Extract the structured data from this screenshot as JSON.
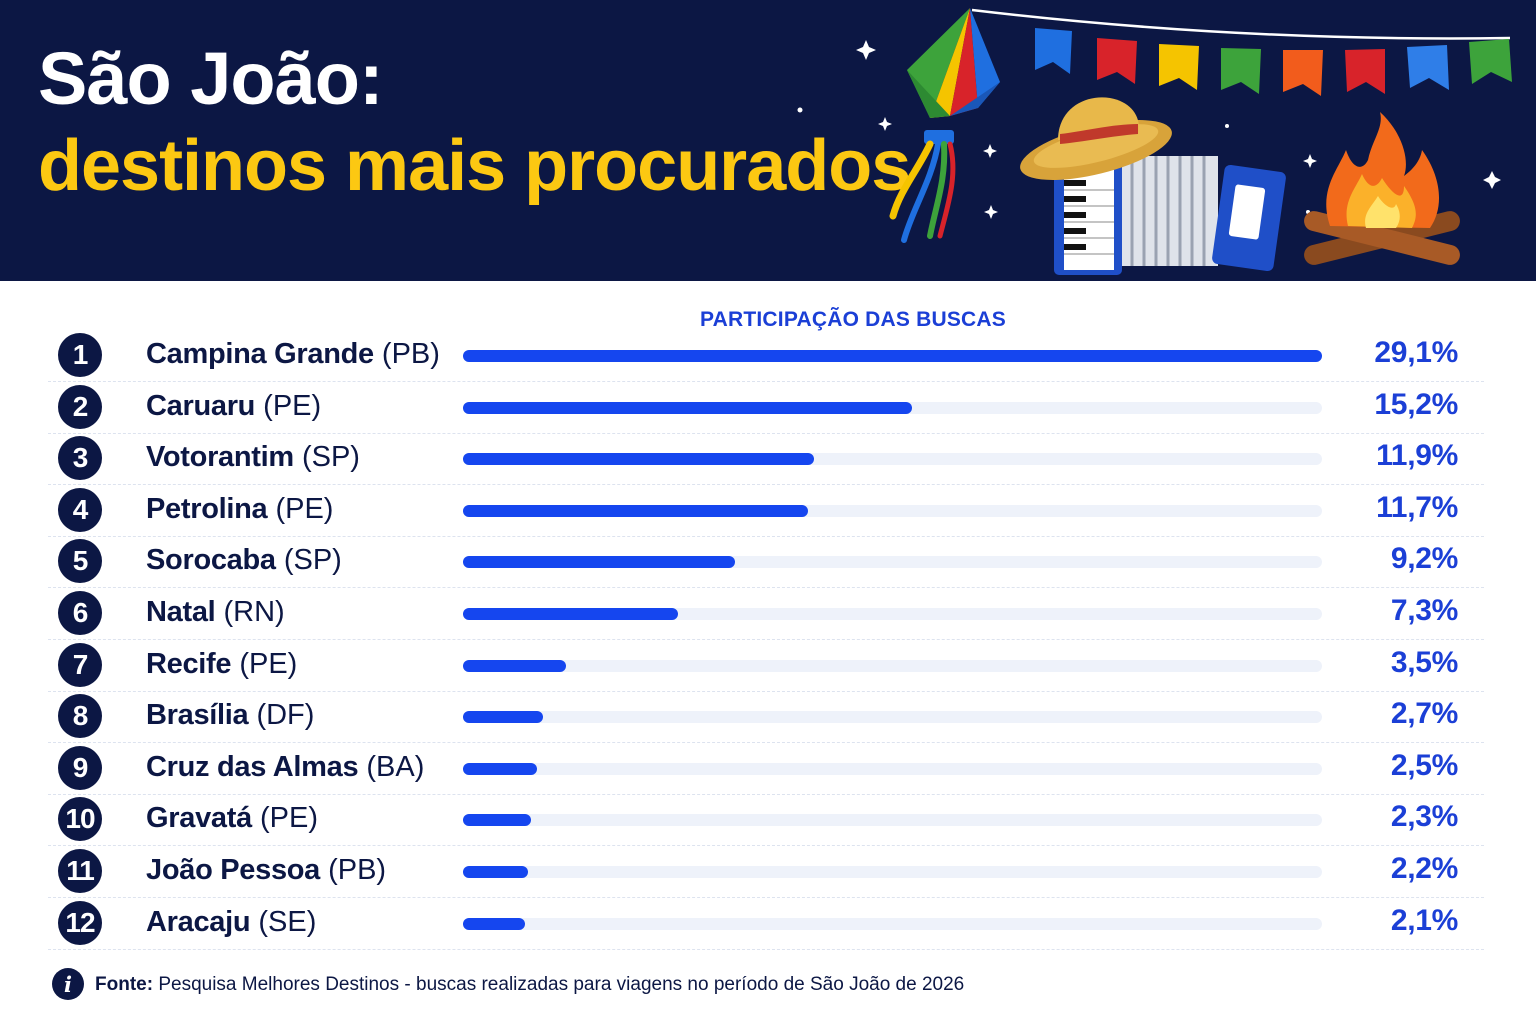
{
  "header": {
    "title_line1": "São João:",
    "title_line2": "destinos mais procurados"
  },
  "colors": {
    "navy": "#0c1744",
    "yellow": "#fcc812",
    "bar": "#1546ef",
    "track": "#eef2fa",
    "accent_text": "#1b3fd6"
  },
  "icons": [
    "balloon-icon",
    "bunting-flags-icon",
    "straw-hat-icon",
    "accordion-icon",
    "bonfire-icon",
    "star-icon",
    "info-icon"
  ],
  "chart_data": {
    "type": "bar",
    "orientation": "horizontal",
    "title": "PARTICIPAÇÃO DAS BUSCAS",
    "unit": "%",
    "xlim": [
      0,
      29.1
    ],
    "categories": [
      "Campina Grande",
      "Caruaru",
      "Votorantim",
      "Petrolina",
      "Sorocaba",
      "Natal",
      "Recife",
      "Brasília",
      "Cruz das Almas",
      "Gravatá",
      "João Pessoa",
      "Aracaju"
    ],
    "rows": [
      {
        "rank": "1",
        "city": "Campina Grande",
        "state": "(PB)",
        "value": 29.1,
        "label": "29,1%"
      },
      {
        "rank": "2",
        "city": "Caruaru",
        "state": "(PE)",
        "value": 15.2,
        "label": "15,2%"
      },
      {
        "rank": "3",
        "city": "Votorantim",
        "state": "(SP)",
        "value": 11.9,
        "label": "11,9%"
      },
      {
        "rank": "4",
        "city": "Petrolina",
        "state": "(PE)",
        "value": 11.7,
        "label": "11,7%"
      },
      {
        "rank": "5",
        "city": "Sorocaba",
        "state": "(SP)",
        "value": 9.2,
        "label": "9,2%"
      },
      {
        "rank": "6",
        "city": "Natal",
        "state": "(RN)",
        "value": 7.3,
        "label": "7,3%"
      },
      {
        "rank": "7",
        "city": "Recife",
        "state": "(PE)",
        "value": 3.5,
        "label": "3,5%"
      },
      {
        "rank": "8",
        "city": "Brasília",
        "state": "(DF)",
        "value": 2.7,
        "label": "2,7%"
      },
      {
        "rank": "9",
        "city": "Cruz das Almas",
        "state": "(BA)",
        "value": 2.5,
        "label": "2,5%"
      },
      {
        "rank": "10",
        "city": "Gravatá",
        "state": "(PE)",
        "value": 2.3,
        "label": "2,3%"
      },
      {
        "rank": "11",
        "city": "João Pessoa",
        "state": "(PB)",
        "value": 2.2,
        "label": "2,2%"
      },
      {
        "rank": "12",
        "city": "Aracaju",
        "state": "(SE)",
        "value": 2.1,
        "label": "2,1%"
      }
    ]
  },
  "footer": {
    "label": "Fonte:",
    "text": "Pesquisa Melhores Destinos - buscas realizadas para viagens no período de São João de 2026"
  }
}
